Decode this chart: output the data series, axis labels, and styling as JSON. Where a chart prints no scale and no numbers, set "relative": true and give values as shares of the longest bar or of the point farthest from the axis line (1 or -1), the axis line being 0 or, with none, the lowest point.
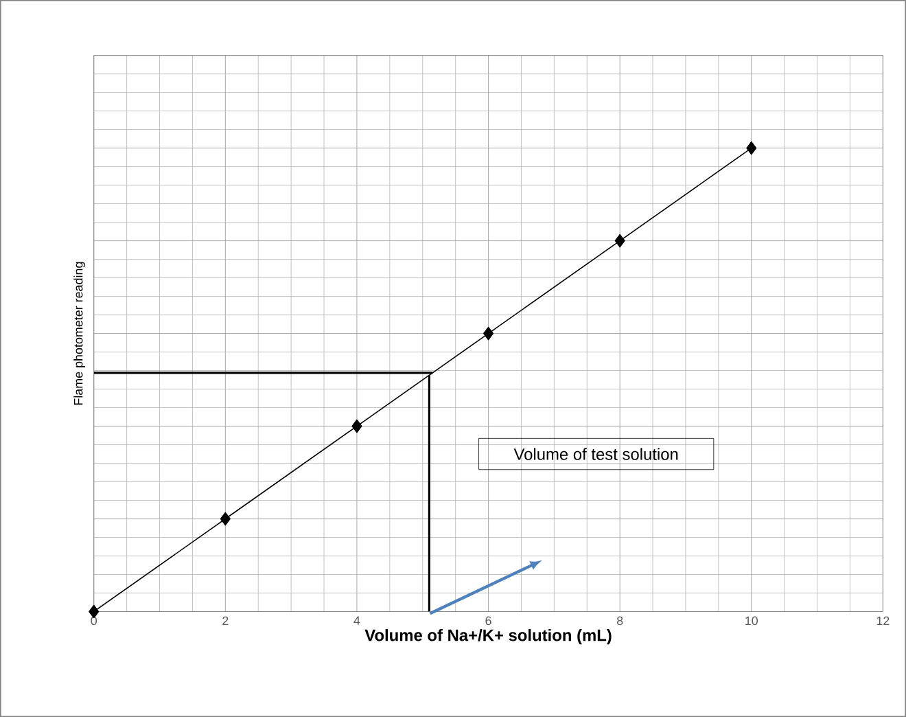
{
  "chart_data": {
    "type": "line",
    "xlabel": "Volume of Na+/K+ solution (mL)",
    "ylabel": "Flame photometer reading",
    "relative": true,
    "xlim": [
      0,
      12
    ],
    "xticks": [
      0,
      2,
      4,
      6,
      8,
      10,
      12
    ],
    "grid": true,
    "line_style": "solid",
    "series": [
      {
        "color": "#000000",
        "marker": "diamond",
        "x": [
          0,
          2,
          4,
          6,
          8,
          10
        ],
        "values": [
          0,
          0.2,
          0.4,
          0.6,
          0.8,
          1
        ]
      },
      {
        "color": "#000000",
        "marker": "none",
        "x": [
          0,
          5.15
        ],
        "values": [
          0.515,
          0.515
        ]
      },
      {
        "color": "#000000",
        "marker": "none",
        "x": [
          5.1,
          5.1
        ],
        "values": [
          0.51,
          0
        ]
      }
    ],
    "annotations": [
      "Volume of test solution"
    ]
  }
}
